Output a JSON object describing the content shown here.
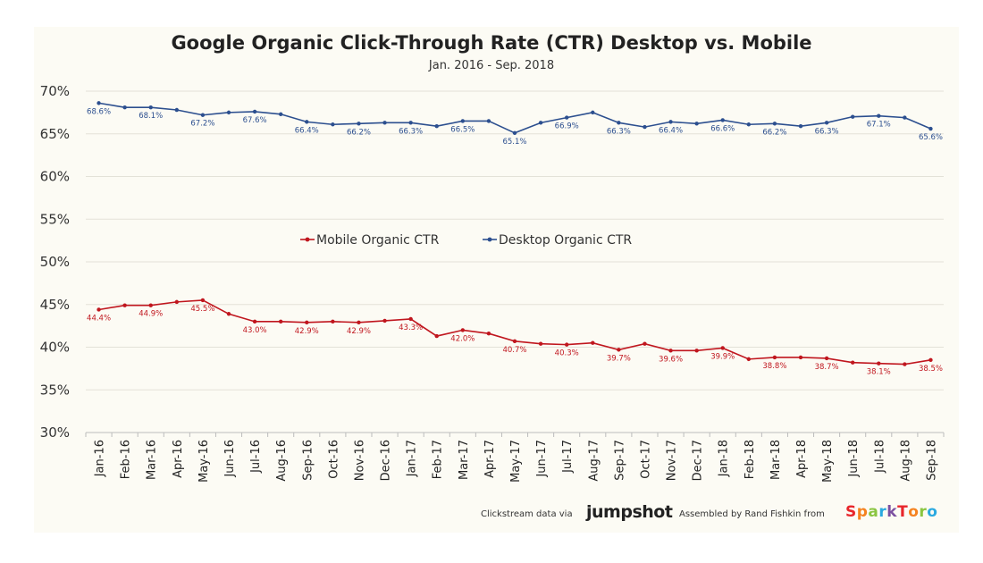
{
  "chart_data": {
    "type": "line",
    "title": "Google Organic Click-Through Rate (CTR) Desktop vs. Mobile",
    "subtitle": "Jan. 2016 - Sep. 2018",
    "categories": [
      "Jan-16",
      "Feb-16",
      "Mar-16",
      "Apr-16",
      "May-16",
      "Jun-16",
      "Jul-16",
      "Aug-16",
      "Sep-16",
      "Oct-16",
      "Nov-16",
      "Dec-16",
      "Jan-17",
      "Feb-17",
      "Mar-17",
      "Apr-17",
      "May-17",
      "Jun-17",
      "Jul-17",
      "Aug-17",
      "Sep-17",
      "Oct-17",
      "Nov-17",
      "Dec-17",
      "Jan-18",
      "Feb-18",
      "Mar-18",
      "Apr-18",
      "May-18",
      "Jun-18",
      "Jul-18",
      "Aug-18",
      "Sep-18"
    ],
    "ylim": [
      30,
      70
    ],
    "yticks": [
      "30%",
      "35%",
      "40%",
      "45%",
      "50%",
      "55%",
      "60%",
      "65%",
      "70%"
    ],
    "legend_position": "center",
    "series": [
      {
        "name": "Mobile Organic CTR",
        "color": "#c0161e",
        "values": [
          44.4,
          44.9,
          44.9,
          45.3,
          45.5,
          43.9,
          43.0,
          43.0,
          42.9,
          43.0,
          42.9,
          43.1,
          43.3,
          41.3,
          42.0,
          41.6,
          40.7,
          40.4,
          40.3,
          40.5,
          39.7,
          40.4,
          39.6,
          39.6,
          39.9,
          38.6,
          38.8,
          38.8,
          38.7,
          38.2,
          38.1,
          38.0,
          38.5
        ],
        "labels": {
          "0": "44.4%",
          "2": "44.9%",
          "4": "45.5%",
          "6": "43.0%",
          "8": "42.9%",
          "10": "42.9%",
          "12": "43.3%",
          "14": "42.0%",
          "16": "40.7%",
          "18": "40.3%",
          "20": "39.7%",
          "22": "39.6%",
          "24": "39.9%",
          "26": "38.8%",
          "28": "38.7%",
          "30": "38.1%",
          "32": "38.5%"
        }
      },
      {
        "name": "Desktop Organic CTR",
        "color": "#2c4f8f",
        "values": [
          68.6,
          68.1,
          68.1,
          67.8,
          67.2,
          67.5,
          67.6,
          67.3,
          66.4,
          66.1,
          66.2,
          66.3,
          66.3,
          65.9,
          66.5,
          66.5,
          65.1,
          66.3,
          66.9,
          67.5,
          66.3,
          65.8,
          66.4,
          66.2,
          66.6,
          66.1,
          66.2,
          65.9,
          66.3,
          67.0,
          67.1,
          66.9,
          65.6
        ],
        "labels": {
          "0": "68.6%",
          "2": "68.1%",
          "4": "67.2%",
          "6": "67.6%",
          "8": "66.4%",
          "10": "66.2%",
          "12": "66.3%",
          "14": "66.5%",
          "16": "65.1%",
          "18": "66.9%",
          "20": "66.3%",
          "22": "66.4%",
          "24": "66.6%",
          "26": "66.2%",
          "28": "66.3%",
          "30": "67.1%",
          "32": "65.6%"
        }
      }
    ]
  },
  "footer": {
    "clickstream": "Clickstream data via",
    "jumpshot": "jumpshot",
    "assembled": "Assembled by Rand Fishkin from",
    "sparktoro": "SparkToro"
  },
  "colors": {
    "sparktoro": [
      "#e8262b",
      "#f5821f",
      "#8ac541",
      "#2aa9e0",
      "#7b4fa0",
      "#e8262b",
      "#f5821f",
      "#8ac541",
      "#2aa9e0"
    ]
  }
}
